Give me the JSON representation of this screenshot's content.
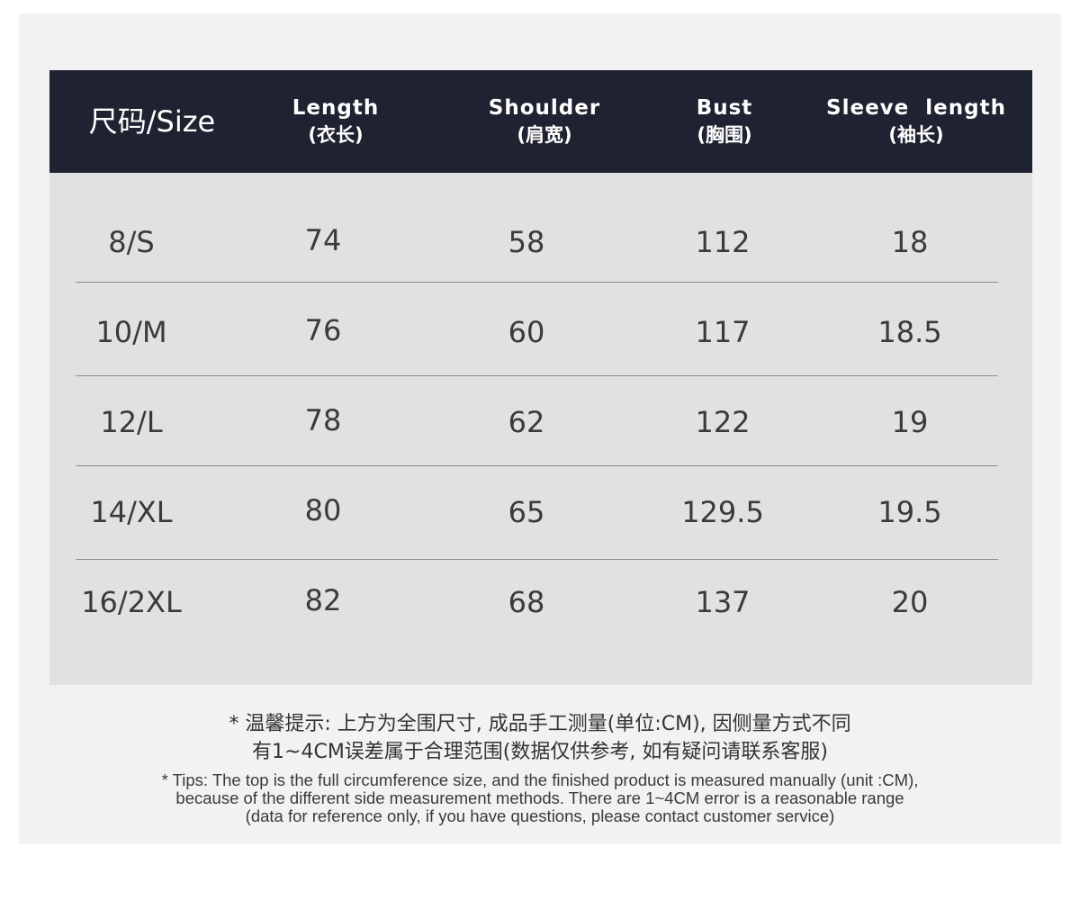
{
  "table": {
    "headers": [
      {
        "key": "size",
        "label": "尺码/Size"
      },
      {
        "key": "length",
        "en": "Length",
        "cn": "(衣长)"
      },
      {
        "key": "shoulder",
        "en": "Shoulder",
        "cn": "(肩宽)"
      },
      {
        "key": "bust",
        "en": "Bust",
        "cn": "(胸围)"
      },
      {
        "key": "sleeve",
        "en": "Sleeve  length",
        "cn": "(袖长)"
      }
    ],
    "rows": [
      [
        "8/S",
        "74",
        "58",
        "112",
        "18"
      ],
      [
        "10/M",
        "76",
        "60",
        "117",
        "18.5"
      ],
      [
        "12/L",
        "78",
        "62",
        "122",
        "19"
      ],
      [
        "14/XL",
        "80",
        "65",
        "129.5",
        "19.5"
      ],
      [
        "16/2XL",
        "82",
        "68",
        "137",
        "20"
      ]
    ]
  },
  "notes": {
    "cn_line1": "* 温馨提示: 上方为全围尺寸, 成品手工测量(单位:CM), 因侧量方式不同",
    "cn_line2": "有1~4CM误差属于合理范围(数据仅供参考, 如有疑问请联系客服)",
    "en_line1": "* Tips: The top is the full circumference size, and the finished product is measured manually (unit :CM),",
    "en_line2": "because of the different side measurement methods. There are 1~4CM error is a reasonable range",
    "en_line3": "(data for reference only, if you have questions, please contact customer service)"
  },
  "colors": {
    "header_bg": "#1f2230",
    "panel_bg": "#e1e1e1",
    "card_bg": "#f2f2f2",
    "text": "#3a3a3a"
  }
}
